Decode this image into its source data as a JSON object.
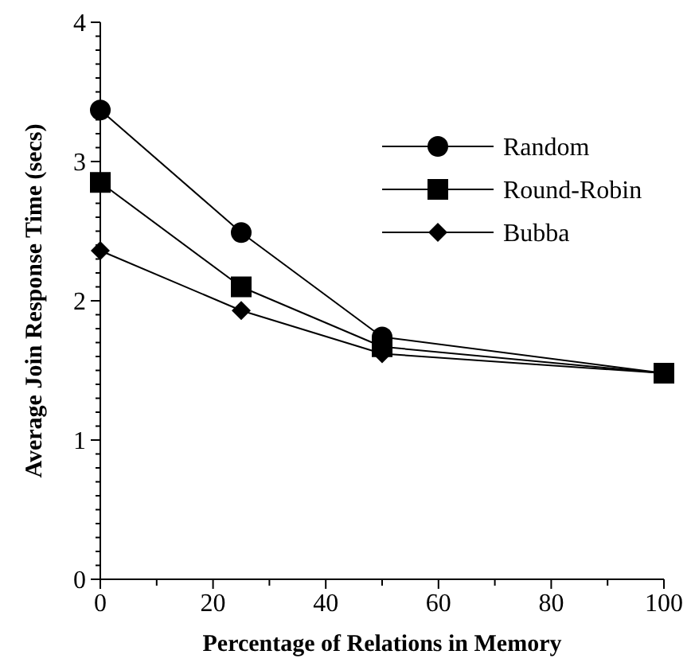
{
  "chart_data": {
    "type": "line",
    "xlabel": "Percentage of Relations in Memory",
    "ylabel": "Average Join Response Time (secs)",
    "x": [
      0,
      25,
      50,
      100
    ],
    "series": [
      {
        "name": "Random",
        "color": "#000000",
        "marker": "circle",
        "values": [
          3.37,
          2.49,
          1.74,
          1.48
        ]
      },
      {
        "name": "Round-Robin",
        "color": "#000000",
        "marker": "square",
        "values": [
          2.85,
          2.1,
          1.67,
          1.48
        ]
      },
      {
        "name": "Bubba",
        "color": "#000000",
        "marker": "diamond",
        "values": [
          2.36,
          1.93,
          1.62,
          1.48
        ]
      }
    ],
    "xlim": [
      0,
      100
    ],
    "xticks": [
      0,
      {
        "value": 10,
        "label": null
      },
      20,
      {
        "value": 30,
        "label": null
      },
      40,
      {
        "value": 50,
        "label": null
      },
      60,
      {
        "value": 70,
        "label": null
      },
      80,
      {
        "value": 90,
        "label": null
      },
      100
    ],
    "ylim": [
      0,
      4
    ],
    "yticks": [
      0,
      {
        "value": 0.1,
        "label": null
      },
      {
        "value": 0.2,
        "label": null
      },
      {
        "value": 0.3,
        "label": null
      },
      {
        "value": 0.4,
        "label": null
      },
      {
        "value": 0.5,
        "label": null
      },
      {
        "value": 0.6,
        "label": null
      },
      {
        "value": 0.7,
        "label": null
      },
      {
        "value": 0.8,
        "label": null
      },
      {
        "value": 0.9,
        "label": null
      },
      1,
      {
        "value": 1.1,
        "label": null
      },
      {
        "value": 1.2,
        "label": null
      },
      {
        "value": 1.3,
        "label": null
      },
      {
        "value": 1.4,
        "label": null
      },
      {
        "value": 1.5,
        "label": null
      },
      {
        "value": 1.6,
        "label": null
      },
      {
        "value": 1.7,
        "label": null
      },
      {
        "value": 1.8,
        "label": null
      },
      {
        "value": 1.9,
        "label": null
      },
      2,
      {
        "value": 2.1,
        "label": null
      },
      {
        "value": 2.2,
        "label": null
      },
      {
        "value": 2.3,
        "label": null
      },
      {
        "value": 2.4,
        "label": null
      },
      {
        "value": 2.5,
        "label": null
      },
      {
        "value": 2.6,
        "label": null
      },
      {
        "value": 2.7,
        "label": null
      },
      {
        "value": 2.8,
        "label": null
      },
      {
        "value": 2.9,
        "label": null
      },
      3,
      {
        "value": 3.1,
        "label": null
      },
      {
        "value": 3.2,
        "label": null
      },
      {
        "value": 3.3,
        "label": null
      },
      {
        "value": 3.4,
        "label": null
      },
      {
        "value": 3.5,
        "label": null
      },
      {
        "value": 3.6,
        "label": null
      },
      {
        "value": 3.7,
        "label": null
      },
      {
        "value": 3.8,
        "label": null
      },
      {
        "value": 3.9,
        "label": null
      },
      4
    ],
    "grid": false,
    "legend": "top right",
    "line_style": "solid"
  }
}
